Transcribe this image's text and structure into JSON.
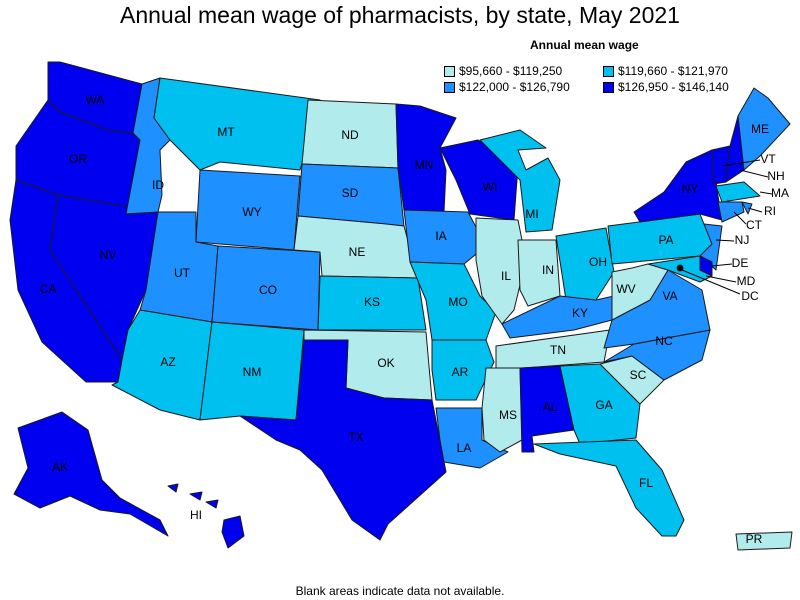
{
  "title": "Annual mean wage of pharmacists, by state, May 2021",
  "legend": {
    "title": "Annual mean wage",
    "items": [
      {
        "label": "$95,660 - $119,250",
        "color": "#b2ebeb"
      },
      {
        "label": "$119,660 - $121,970",
        "color": "#00c0f0"
      },
      {
        "label": "$122,000 - $126,790",
        "color": "#1e90ff"
      },
      {
        "label": "$126,950 - $146,140",
        "color": "#0000f0"
      }
    ]
  },
  "footnote": "Blank areas indicate data not available.",
  "states": {
    "WA": 3,
    "OR": 3,
    "CA": 3,
    "NV": 3,
    "ID": 2,
    "MT": 1,
    "WY": 2,
    "UT": 2,
    "CO": 2,
    "AZ": 1,
    "NM": 1,
    "ND": 0,
    "SD": 2,
    "NE": 0,
    "KS": 1,
    "OK": 0,
    "TX": 3,
    "MN": 3,
    "IA": 2,
    "MO": 1,
    "AR": 1,
    "LA": 2,
    "WI": 3,
    "IL": 0,
    "MI": 1,
    "IN": 0,
    "OH": 1,
    "KY": 2,
    "TN": 0,
    "MS": 0,
    "AL": 3,
    "GA": 1,
    "FL": 1,
    "SC": 0,
    "NC": 2,
    "VA": 2,
    "WV": 0,
    "PA": 1,
    "NY": 3,
    "VT": 3,
    "NH": 3,
    "ME": 2,
    "MA": 1,
    "RI": 2,
    "CT": 2,
    "NJ": 2,
    "DE": 3,
    "MD": 1,
    "DC": 3,
    "AK": 3,
    "HI": 3,
    "PR": 0
  },
  "labels": [
    "WA",
    "OR",
    "CA",
    "NV",
    "ID",
    "MT",
    "WY",
    "UT",
    "CO",
    "AZ",
    "NM",
    "ND",
    "SD",
    "NE",
    "KS",
    "OK",
    "TX",
    "MN",
    "IA",
    "MO",
    "AR",
    "LA",
    "WI",
    "IL",
    "MI",
    "IN",
    "OH",
    "KY",
    "TN",
    "MS",
    "AL",
    "GA",
    "FL",
    "SC",
    "NC",
    "VA",
    "WV",
    "PA",
    "NY",
    "ME",
    "AK",
    "HI",
    "PR",
    "VT",
    "NH",
    "MA",
    "RI",
    "CT",
    "NJ",
    "DE",
    "MD",
    "DC"
  ]
}
